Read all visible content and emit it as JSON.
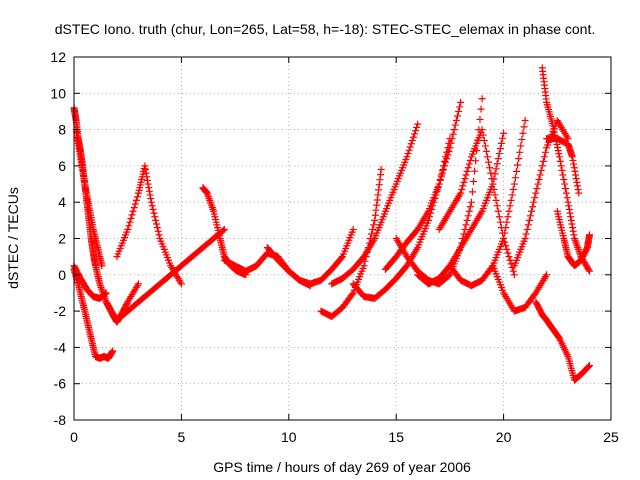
{
  "chart_data": {
    "type": "scatter",
    "title": "dSTEC Iono. truth (chur, Lon=265, Lat=58, h=-18): STEC-STEC_elemax in phase cont.",
    "xlabel": "GPS time / hours of day 269 of year 2006",
    "ylabel": "dSTEC  / TECUs",
    "xlim": [
      0,
      25
    ],
    "ylim": [
      -8,
      12
    ],
    "x_ticks": [
      0,
      5,
      10,
      15,
      20,
      25
    ],
    "y_ticks": [
      -8,
      -6,
      -4,
      -2,
      0,
      2,
      4,
      6,
      8,
      10,
      12
    ],
    "grid": true,
    "marker": "+",
    "color": "#ff0000",
    "series": [
      {
        "x": [
          0.0,
          0.1,
          0.2,
          0.3,
          0.4,
          0.5,
          0.6,
          0.7,
          0.8,
          0.9,
          1.0,
          1.2,
          1.5,
          1.8,
          2.0,
          2.2,
          2.5,
          3.0
        ],
        "y": [
          9.2,
          8.5,
          7.5,
          6.8,
          6.0,
          5.0,
          4.0,
          3.0,
          2.0,
          1.2,
          0.5,
          -0.5,
          -1.5,
          -2.2,
          -2.6,
          -2.2,
          -1.5,
          -0.5
        ]
      },
      {
        "x": [
          0.0,
          0.2,
          0.4,
          0.6,
          0.8,
          1.0,
          1.2,
          1.4,
          1.6,
          1.8
        ],
        "y": [
          0.3,
          -0.5,
          -1.5,
          -2.5,
          -3.5,
          -4.5,
          -4.6,
          -4.5,
          -4.6,
          -4.2
        ]
      },
      {
        "x": [
          0.0,
          0.3,
          0.6,
          0.9,
          1.2,
          1.5
        ],
        "y": [
          0.5,
          -0.2,
          -0.8,
          -1.2,
          -1.3,
          -1.0
        ]
      },
      {
        "x": [
          0.1,
          0.3,
          0.5,
          0.7,
          0.9,
          1.1,
          1.3
        ],
        "y": [
          8.0,
          6.5,
          5.0,
          3.8,
          2.5,
          1.5,
          0.5
        ]
      },
      {
        "x": [
          2.0,
          2.5,
          3.0,
          3.3,
          3.6,
          4.0,
          4.5,
          5.0
        ],
        "y": [
          1.0,
          2.5,
          4.5,
          6.0,
          4.0,
          2.0,
          0.5,
          -0.5
        ]
      },
      {
        "x": [
          1.5,
          2.0,
          2.5,
          3.0,
          3.5,
          4.0,
          4.5,
          5.0,
          5.5,
          6.0,
          6.5,
          7.0
        ],
        "y": [
          -1.5,
          -2.5,
          -2.0,
          -1.5,
          -1.0,
          -0.5,
          0.0,
          0.5,
          1.0,
          1.5,
          2.0,
          2.5
        ]
      },
      {
        "x": [
          6.0,
          6.2,
          6.5,
          6.8,
          7.0,
          7.3,
          7.6,
          8.0
        ],
        "y": [
          4.8,
          4.5,
          3.5,
          2.0,
          1.0,
          0.5,
          0.2,
          0.0
        ]
      },
      {
        "x": [
          7.0,
          7.5,
          8.0,
          8.5,
          9.0,
          9.5,
          10.0,
          10.5,
          11.0
        ],
        "y": [
          0.8,
          0.5,
          0.2,
          0.5,
          1.2,
          1.0,
          0.2,
          -0.3,
          -0.6
        ]
      },
      {
        "x": [
          9.0,
          9.5,
          10.0,
          10.5,
          11.0,
          11.5,
          12.0,
          12.5,
          13.0
        ],
        "y": [
          1.5,
          0.8,
          0.2,
          -0.3,
          -0.5,
          -0.3,
          0.3,
          1.0,
          2.5
        ]
      },
      {
        "x": [
          11.5,
          12.0,
          12.5,
          13.0,
          13.5,
          14.0,
          14.3
        ],
        "y": [
          -2.0,
          -2.3,
          -1.8,
          -1.0,
          0.5,
          3.0,
          5.8
        ]
      },
      {
        "x": [
          12.0,
          12.5,
          13.0,
          13.5,
          14.0,
          14.5,
          15.0,
          15.5,
          16.0
        ],
        "y": [
          -0.5,
          -0.2,
          0.3,
          1.0,
          2.0,
          3.5,
          5.0,
          6.5,
          8.3
        ]
      },
      {
        "x": [
          13.0,
          13.5,
          14.0,
          14.5,
          15.0,
          15.5,
          16.0,
          16.5,
          17.0,
          17.5
        ],
        "y": [
          -0.5,
          -1.2,
          -1.3,
          -0.8,
          -0.2,
          0.5,
          1.5,
          3.0,
          5.0,
          7.5
        ]
      },
      {
        "x": [
          14.5,
          15.0,
          15.5,
          16.0,
          16.5,
          17.0,
          17.5,
          18.0
        ],
        "y": [
          0.3,
          1.0,
          1.8,
          2.5,
          3.5,
          5.0,
          7.0,
          9.5
        ]
      },
      {
        "x": [
          15.0,
          15.5,
          16.0,
          16.5,
          17.0,
          17.5,
          18.0,
          18.5,
          19.0
        ],
        "y": [
          2.0,
          1.0,
          0.2,
          -0.3,
          -0.5,
          0.0,
          1.5,
          4.0,
          9.7
        ]
      },
      {
        "x": [
          16.0,
          16.5,
          17.0,
          17.5,
          18.0,
          18.5,
          19.0,
          19.5,
          20.0
        ],
        "y": [
          0.0,
          -0.5,
          -0.2,
          0.5,
          1.5,
          2.5,
          3.5,
          5.0,
          7.8
        ]
      },
      {
        "x": [
          17.0,
          17.5,
          18.0,
          18.5,
          19.0,
          19.5,
          20.0,
          20.5
        ],
        "y": [
          2.5,
          3.5,
          4.5,
          6.5,
          8.0,
          5.0,
          2.0,
          0.0
        ]
      },
      {
        "x": [
          17.5,
          18.0,
          18.5,
          19.0,
          19.5,
          20.0,
          20.5,
          21.0
        ],
        "y": [
          0.5,
          -0.3,
          -0.6,
          -0.3,
          0.5,
          2.0,
          5.0,
          8.5
        ]
      },
      {
        "x": [
          19.5,
          20.0,
          20.5,
          21.0,
          21.5,
          22.0
        ],
        "y": [
          0.5,
          -1.0,
          -2.0,
          -1.8,
          -1.0,
          0.0
        ]
      },
      {
        "x": [
          20.5,
          21.0,
          21.5,
          22.0,
          22.5,
          23.0
        ],
        "y": [
          0.5,
          2.0,
          4.5,
          7.0,
          8.5,
          7.5
        ]
      },
      {
        "x": [
          21.8,
          22.0,
          22.3,
          22.6,
          23.0,
          23.3,
          23.6,
          24.0
        ],
        "y": [
          11.4,
          9.5,
          8.2,
          6.5,
          4.0,
          2.0,
          1.0,
          0.2
        ]
      },
      {
        "x": [
          21.5,
          21.8,
          22.0,
          22.3,
          22.6,
          23.0,
          23.3,
          23.6,
          24.0
        ],
        "y": [
          -1.5,
          -2.2,
          -2.5,
          -3.0,
          -3.5,
          -4.5,
          -5.8,
          -5.5,
          -5.0
        ]
      },
      {
        "x": [
          22.5,
          22.8,
          23.0,
          23.3,
          23.6,
          23.9,
          24.0
        ],
        "y": [
          3.5,
          2.0,
          1.0,
          0.5,
          0.8,
          1.5,
          2.2
        ]
      },
      {
        "x": [
          22.0,
          22.5,
          23.0,
          23.2,
          23.5
        ],
        "y": [
          7.5,
          7.5,
          7.2,
          6.5,
          4.5
        ]
      }
    ]
  }
}
